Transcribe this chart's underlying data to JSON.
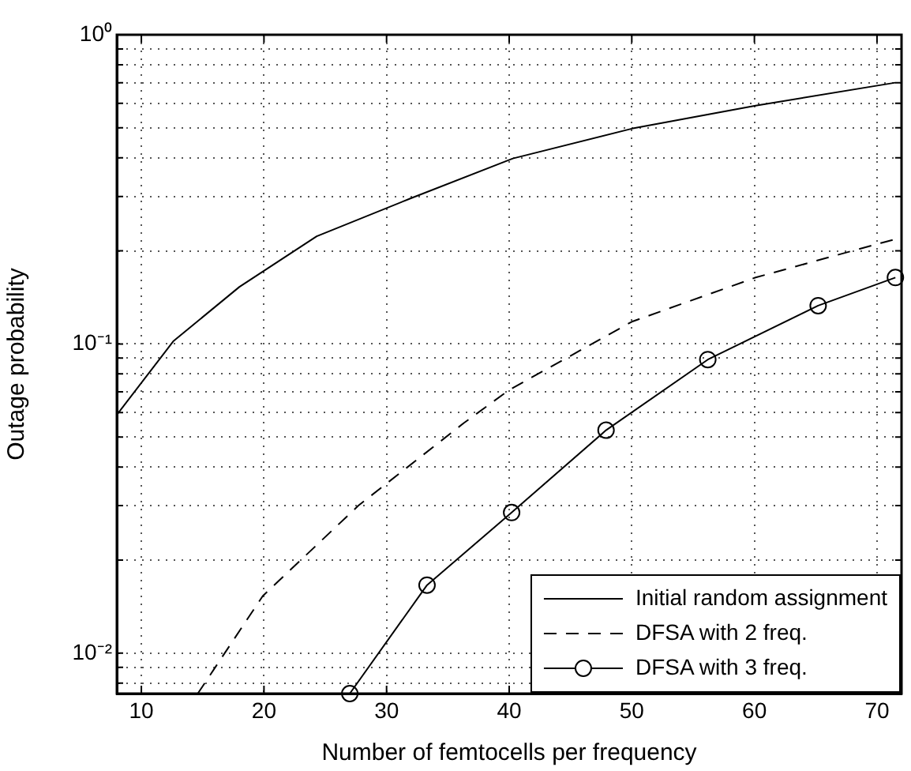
{
  "chart_data": {
    "type": "line",
    "xlabel": "Number of femtocells per frequency",
    "ylabel": "Outage probability",
    "xlim": [
      8,
      72
    ],
    "xticks": [
      10,
      20,
      30,
      40,
      50,
      60,
      70
    ],
    "ylim": [
      0.0074,
      1
    ],
    "yticks": [
      {
        "value": 0.008,
        "label": null
      },
      {
        "value": 0.009,
        "label": null
      },
      {
        "value": 0.01,
        "label": "10⁻²"
      },
      {
        "value": 0.02,
        "label": null
      },
      {
        "value": 0.03,
        "label": null
      },
      {
        "value": 0.04,
        "label": null
      },
      {
        "value": 0.05,
        "label": null
      },
      {
        "value": 0.06,
        "label": null
      },
      {
        "value": 0.07,
        "label": null
      },
      {
        "value": 0.08,
        "label": null
      },
      {
        "value": 0.09,
        "label": null
      },
      {
        "value": 0.1,
        "label": "10⁻¹"
      },
      {
        "value": 0.2,
        "label": null
      },
      {
        "value": 0.3,
        "label": null
      },
      {
        "value": 0.4,
        "label": null
      },
      {
        "value": 0.5,
        "label": null
      },
      {
        "value": 0.6,
        "label": null
      },
      {
        "value": 0.7,
        "label": null
      },
      {
        "value": 0.8,
        "label": null
      },
      {
        "value": 0.9,
        "label": null
      },
      {
        "value": 1,
        "label": "10⁰"
      }
    ],
    "log": "y",
    "grid": true,
    "legend": "bottom right",
    "series": [
      {
        "name": "Initial random assignment",
        "color": "#000000",
        "line_style": "solid",
        "marker": "none",
        "x": [
          8,
          12.6,
          18,
          24.3,
          31.9,
          40.3,
          50,
          60.1,
          71.5
        ],
        "values": [
          0.059,
          0.102,
          0.153,
          0.223,
          0.295,
          0.398,
          0.497,
          0.59,
          0.7
        ]
      },
      {
        "name": "DFSA with 2 freq.",
        "color": "#000000",
        "line_style": "dashed",
        "marker": "none",
        "x": [
          14.6,
          19.9,
          27.7,
          36.3,
          40,
          50,
          60.1,
          70.3,
          71.5
        ],
        "values": [
          0.0074,
          0.0153,
          0.03,
          0.0555,
          0.071,
          0.118,
          0.164,
          0.212,
          0.218
        ]
      },
      {
        "name": "DFSA with 3 freq.",
        "color": "#000000",
        "line_style": "solid",
        "marker": "circle",
        "x": [
          27,
          33.3,
          40.2,
          47.9,
          56.2,
          65.2,
          71.5
        ],
        "values": [
          0.0074,
          0.0166,
          0.0285,
          0.0526,
          0.089,
          0.133,
          0.164
        ]
      }
    ]
  }
}
